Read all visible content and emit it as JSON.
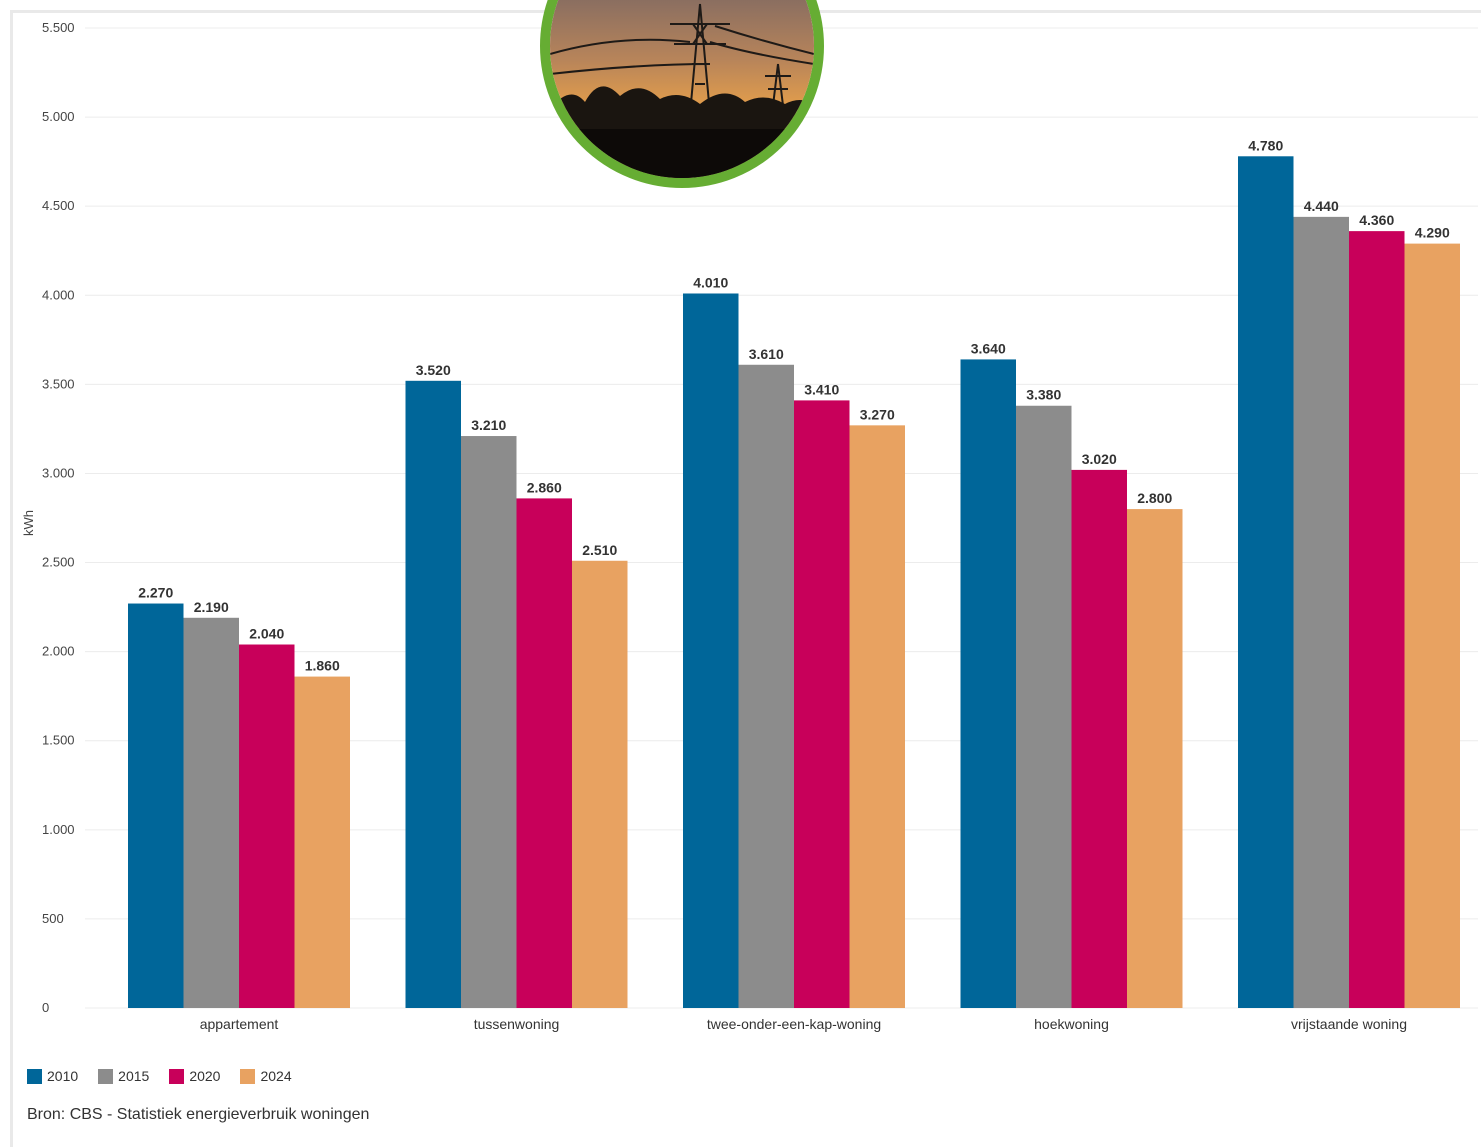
{
  "chart_data": {
    "type": "bar",
    "title": "",
    "xlabel": "",
    "ylabel": "kWh",
    "ylim": [
      0,
      5500
    ],
    "yticks": [
      0,
      500,
      1000,
      1500,
      2000,
      2500,
      3000,
      3500,
      4000,
      4500,
      5000,
      5500
    ],
    "ytick_labels": [
      "0",
      "500",
      "1.000",
      "1.500",
      "2.000",
      "2.500",
      "3.000",
      "3.500",
      "4.000",
      "4.500",
      "5.000",
      "5.500"
    ],
    "grid": true,
    "legend_position": "bottom-left",
    "categories": [
      "appartement",
      "tussenwoning",
      "twee-onder-een-kap-woning",
      "hoekwoning",
      "vrijstaande woning"
    ],
    "series": [
      {
        "name": "2010",
        "color": "#006699",
        "values": [
          2270,
          3520,
          4010,
          3640,
          4780
        ],
        "labels": [
          "2.270",
          "3.520",
          "4.010",
          "3.640",
          "4.780"
        ]
      },
      {
        "name": "2015",
        "color": "#8c8c8c",
        "values": [
          2190,
          3210,
          3610,
          3380,
          4440
        ],
        "labels": [
          "2.190",
          "3.210",
          "3.610",
          "3.380",
          "4.440"
        ]
      },
      {
        "name": "2020",
        "color": "#c8005a",
        "values": [
          2040,
          2860,
          3410,
          3020,
          4360
        ],
        "labels": [
          "2.040",
          "2.860",
          "3.410",
          "3.020",
          "4.360"
        ]
      },
      {
        "name": "2024",
        "color": "#e8a261",
        "values": [
          1860,
          2510,
          3270,
          2800,
          4290
        ],
        "labels": [
          "1.860",
          "2.510",
          "3.270",
          "2.800",
          "4.290"
        ]
      }
    ]
  },
  "source": "Bron: CBS - Statistiek energieverbruik woningen",
  "photo_icon": "power-pylon-sunset-photo"
}
